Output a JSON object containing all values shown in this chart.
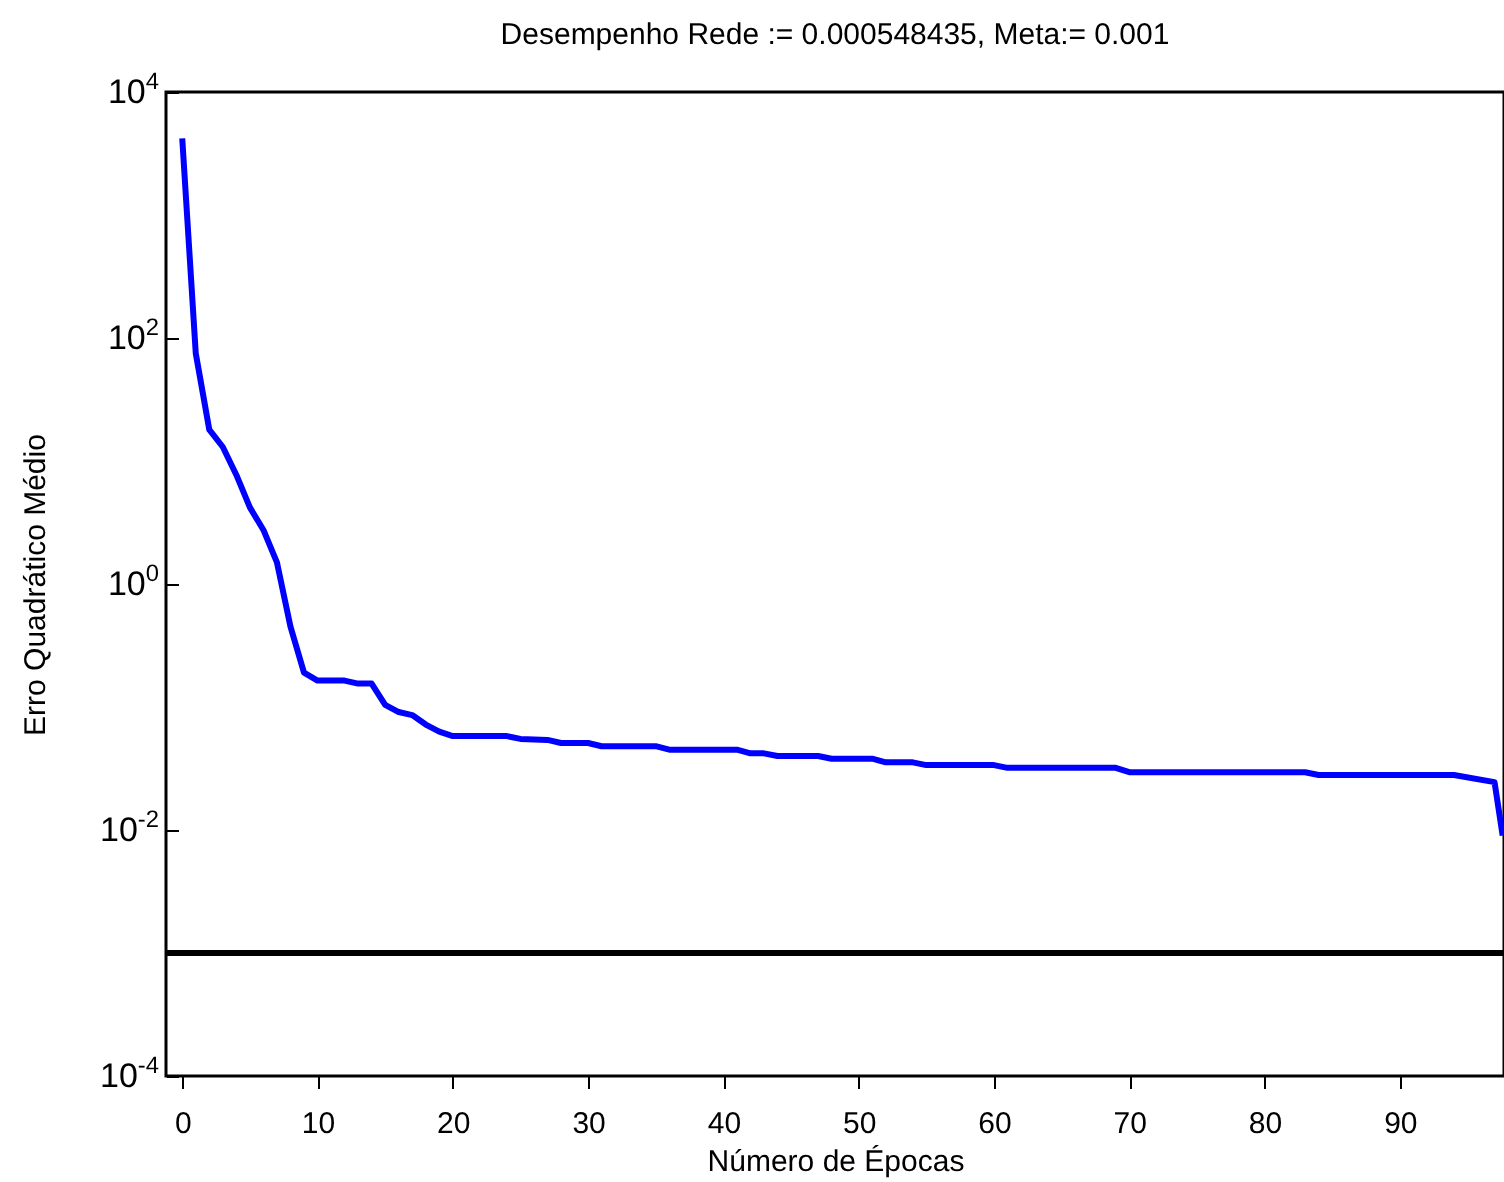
{
  "chart_data": {
    "type": "line",
    "title": "Desempenho Rede := 0.000548435, Meta:= 0.001",
    "xlabel": "Número de Épocas",
    "ylabel": "Erro Quadrático Médio",
    "x": [
      0,
      1,
      2,
      3,
      4,
      5,
      6,
      7,
      8,
      9,
      10,
      12,
      13,
      14,
      15,
      16,
      17,
      18,
      19,
      20,
      24,
      25,
      27,
      28,
      30,
      31,
      35,
      36,
      41,
      42,
      43,
      44,
      47,
      48,
      51,
      52,
      54,
      55,
      60,
      61,
      69,
      70,
      83,
      84,
      94,
      97,
      97.6
    ],
    "series": [
      {
        "color": "#0000ff",
        "values": [
          4200,
          75,
          18,
          13,
          7.7,
          4.2,
          2.75,
          1.5,
          0.45,
          0.19,
          0.164,
          0.164,
          0.155,
          0.155,
          0.104,
          0.091,
          0.086,
          0.072,
          0.063,
          0.058,
          0.058,
          0.055,
          0.054,
          0.051,
          0.051,
          0.048,
          0.048,
          0.045,
          0.045,
          0.042,
          0.042,
          0.04,
          0.04,
          0.038,
          0.038,
          0.0355,
          0.0355,
          0.0337,
          0.0337,
          0.032,
          0.032,
          0.0295,
          0.0295,
          0.028,
          0.028,
          0.0245,
          0.009
        ]
      }
    ],
    "ref_lines": [
      {
        "axis": "y",
        "value": 0.001,
        "color": "#000000"
      }
    ],
    "xlim": [
      -1.2,
      97.7
    ],
    "xticks": [
      0,
      10,
      20,
      30,
      40,
      50,
      60,
      70,
      80,
      90
    ],
    "ylim": [
      0.0001,
      10000
    ],
    "yticks": [
      {
        "value": 0.0001,
        "label": "10$^{-4}$"
      },
      {
        "value": 0.01,
        "label": "10$^{-2}$"
      },
      {
        "value": 1,
        "label": "10$^{0}$"
      },
      {
        "value": 100,
        "label": "10$^{2}$"
      },
      {
        "value": 10000,
        "label": "10$^{4}$"
      }
    ],
    "log": "y",
    "grid": false,
    "marker": "none",
    "line_style": "solid"
  }
}
